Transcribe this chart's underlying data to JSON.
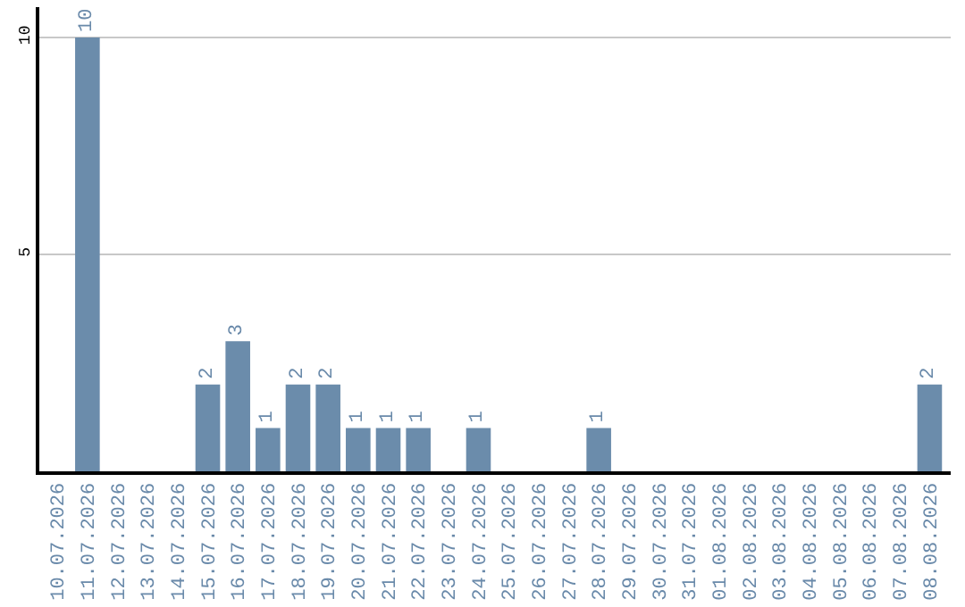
{
  "chart_data": {
    "type": "bar",
    "categories": [
      "10.07.2026",
      "11.07.2026",
      "12.07.2026",
      "13.07.2026",
      "14.07.2026",
      "15.07.2026",
      "16.07.2026",
      "17.07.2026",
      "18.07.2026",
      "19.07.2026",
      "20.07.2026",
      "21.07.2026",
      "22.07.2026",
      "23.07.2026",
      "24.07.2026",
      "25.07.2026",
      "26.07.2026",
      "27.07.2026",
      "28.07.2026",
      "29.07.2026",
      "30.07.2026",
      "31.07.2026",
      "01.08.2026",
      "02.08.2026",
      "03.08.2026",
      "04.08.2026",
      "05.08.2026",
      "06.08.2026",
      "07.08.2026",
      "08.08.2026"
    ],
    "values": [
      0,
      10,
      0,
      0,
      0,
      2,
      3,
      1,
      2,
      2,
      1,
      1,
      1,
      0,
      1,
      0,
      0,
      0,
      1,
      0,
      0,
      0,
      0,
      0,
      0,
      0,
      0,
      0,
      0,
      2
    ],
    "value_labels": [
      null,
      "10",
      null,
      null,
      null,
      "2",
      "3",
      "1",
      "2",
      "2",
      "1",
      "1",
      "1",
      null,
      "1",
      null,
      null,
      null,
      "1",
      null,
      null,
      null,
      null,
      null,
      null,
      null,
      null,
      null,
      null,
      "2"
    ],
    "color": "#6b8cab",
    "ylim": [
      0,
      10.7
    ],
    "yticks": [
      5,
      10
    ],
    "grid": "y",
    "legend": false
  }
}
